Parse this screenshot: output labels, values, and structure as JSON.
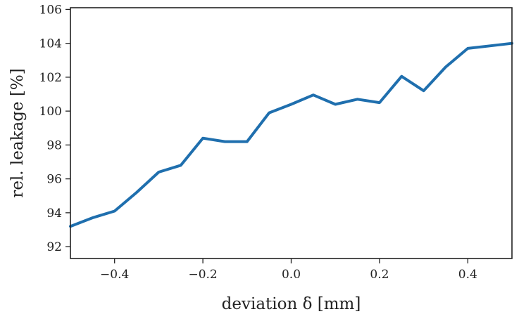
{
  "chart_data": {
    "type": "line",
    "title": "",
    "xlabel": "deviation δ [mm]",
    "ylabel": "rel. leakage [%]",
    "xlim": [
      -0.5,
      0.5
    ],
    "ylim": [
      91.3,
      106.1
    ],
    "xticks": [
      -0.4,
      -0.2,
      0.0,
      0.2,
      0.4
    ],
    "xtick_labels": [
      "−0.4",
      "−0.2",
      "0.0",
      "0.2",
      "0.4"
    ],
    "yticks": [
      92,
      94,
      96,
      98,
      100,
      102,
      104,
      106
    ],
    "ytick_labels": [
      "92",
      "94",
      "96",
      "98",
      "100",
      "102",
      "104",
      "106"
    ],
    "grid": false,
    "legend": "none",
    "colors": {
      "line": "#1f6fae",
      "axes": "#222222"
    },
    "series": [
      {
        "x": [
          -0.5,
          -0.45,
          -0.4,
          -0.35,
          -0.3,
          -0.25,
          -0.2,
          -0.15,
          -0.1,
          -0.05,
          0.0,
          0.05,
          0.1,
          0.15,
          0.2,
          0.25,
          0.3,
          0.35,
          0.4,
          0.45,
          0.5
        ],
        "y": [
          93.2,
          93.7,
          94.1,
          95.2,
          96.4,
          96.8,
          98.4,
          98.2,
          98.2,
          99.9,
          100.4,
          100.95,
          100.4,
          100.7,
          100.5,
          102.05,
          101.2,
          102.6,
          103.7,
          103.85,
          104.0
        ]
      }
    ]
  }
}
